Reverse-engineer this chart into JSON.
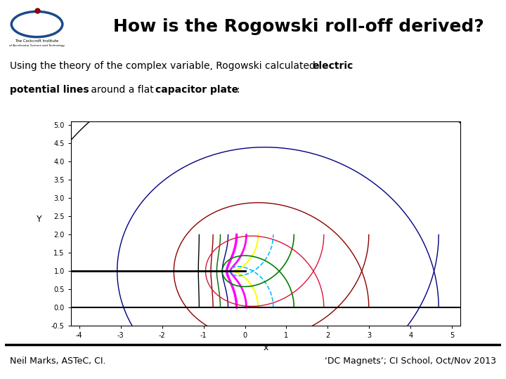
{
  "title": "How is the Rogowski roll-off derived?",
  "footer_left": "Neil Marks, ASTeC, CI.",
  "footer_right": "‘DC Magnets’; CI School, Oct/Nov 2013",
  "xlabel": "x",
  "ylabel": "Y",
  "xlim": [
    -4.2,
    5.2
  ],
  "ylim": [
    -0.5,
    5.1
  ],
  "xticks": [
    -4,
    -3,
    -2,
    -1,
    0,
    1,
    2,
    3,
    4,
    5
  ],
  "yticks": [
    -0.5,
    0.0,
    0.5,
    1.0,
    1.5,
    2.0,
    2.5,
    3.0,
    3.5,
    4.0,
    4.5,
    5.0
  ],
  "u_values": [
    -3.5,
    -2.5,
    -2.0,
    -1.5,
    -1.0,
    -0.5,
    0.0,
    0.5,
    1.0,
    1.5,
    2.0,
    2.5,
    3.0
  ],
  "line_colors": [
    "#000000",
    "#8b0000",
    "#006400",
    "#000080",
    "#ff00ff",
    "#ff00ff",
    "#ffff00",
    "#00bfff",
    "#008000",
    "#dc143c",
    "#8b0000",
    "#000080",
    "#000000"
  ],
  "line_widths": [
    1.0,
    1.0,
    1.0,
    1.0,
    2.5,
    2.0,
    1.5,
    1.2,
    1.2,
    1.0,
    1.0,
    1.0,
    1.0
  ],
  "line_styles": [
    "-",
    "-",
    "-",
    "-",
    "-",
    "-",
    "-",
    "--",
    "-",
    "-",
    "-",
    "-",
    "-"
  ],
  "plate_color": "#000000",
  "plate_lw": 1.5,
  "bg_color": "#ffffff",
  "tick_fontsize": 7,
  "label_fontsize": 9,
  "title_fontsize": 18
}
